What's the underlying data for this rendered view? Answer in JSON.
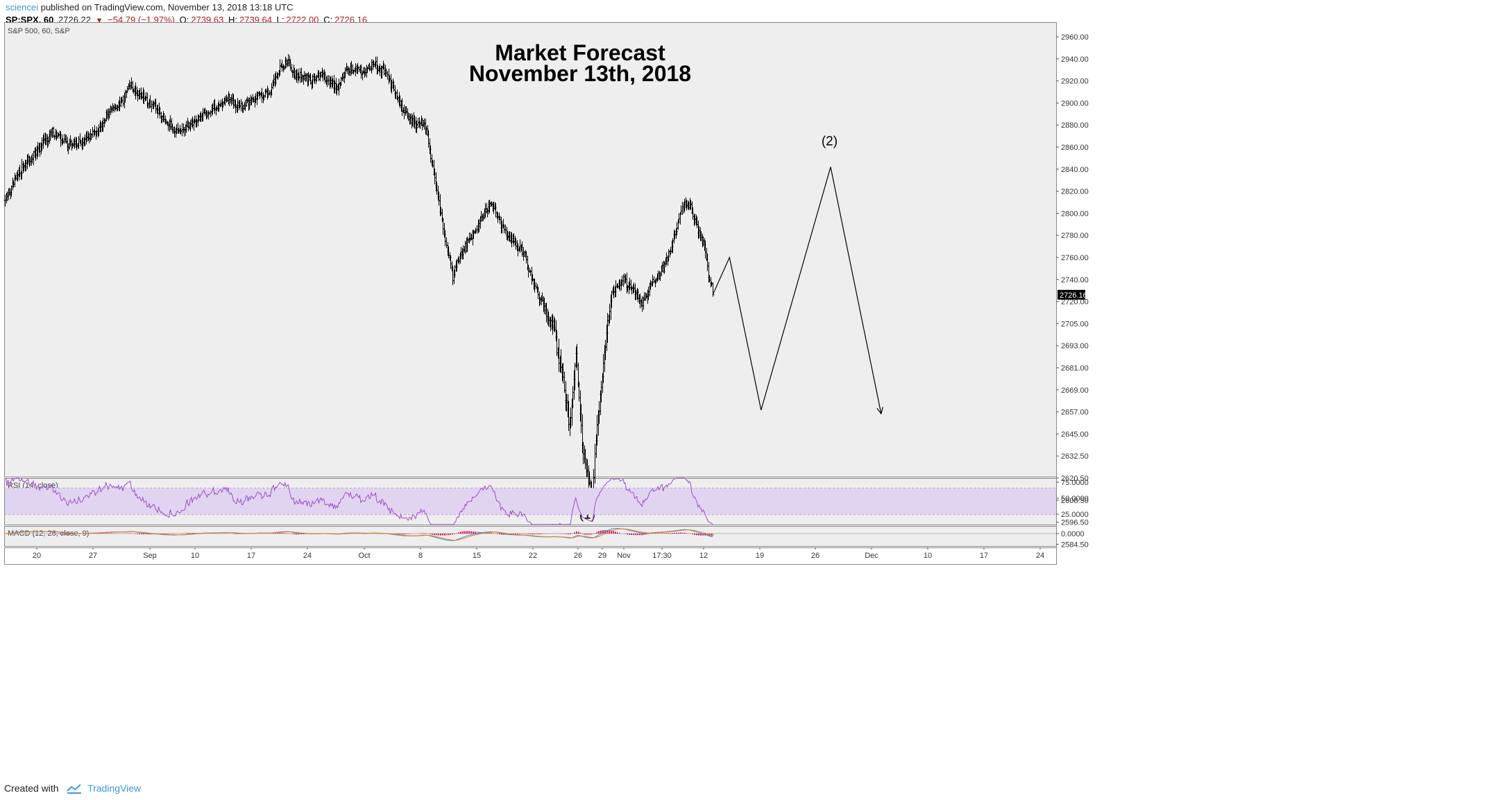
{
  "header": {
    "author": "sciencei",
    "publish_text": "published on TradingView.com, November 13, 2018 13:18 UTC",
    "symbol_line": "SP:SPX, 60",
    "last": "2726.22",
    "change_arrow": "▼",
    "change": "−54.79 (−1.97%)",
    "open_label": "O:",
    "open": "2739.63",
    "high_label": "H:",
    "high": "2739.64",
    "low_label": "L:",
    "low": "2722.00",
    "close_label": "C:",
    "close": "2726.16"
  },
  "footer": {
    "created_with": "Created with",
    "brand": "TradingView"
  },
  "colors": {
    "pane_bg": "#eeeeee",
    "border": "#888888",
    "bar": "#000000",
    "rsi_band": "#e1d4f0",
    "rsi_line": "#9c4fc7",
    "macd_line": "#2196f3",
    "signal_line": "#f57c00",
    "hist": "#d81b60",
    "tv_blue": "#3a98d9",
    "last_price_bg": "#000000"
  },
  "chart_data": [
    {
      "type": "ohlc",
      "pane_label": "S&P 500, 60, S&P",
      "title": "Market Forecast",
      "subtitle": "November 13th, 2018",
      "last_price_label": "2726.16",
      "x_axis_labels": [
        "20",
        "27",
        "Sep",
        "10",
        "17",
        "24",
        "Oct",
        "8",
        "15",
        "22",
        "26",
        "29",
        "Nov",
        "17:30",
        "12",
        "19",
        "26",
        "Dec",
        "10",
        "17",
        "24"
      ],
      "y_axis_labels": [
        "2960.00",
        "2940.00",
        "2920.00",
        "2900.00",
        "2880.00",
        "2860.00",
        "2840.00",
        "2820.00",
        "2800.00",
        "2780.00",
        "2760.00",
        "2740.00",
        "2720.00",
        "2705.00",
        "2693.00",
        "2681.00",
        "2669.00",
        "2657.00",
        "2645.00",
        "2632.50",
        "2620.50",
        "2608.50",
        "2596.50",
        "2584.50"
      ],
      "price_anchors": [
        [
          0,
          2812
        ],
        [
          6,
          2822
        ],
        [
          16,
          2842
        ],
        [
          30,
          2855
        ],
        [
          45,
          2874
        ],
        [
          60,
          2862
        ],
        [
          75,
          2865
        ],
        [
          86,
          2875
        ],
        [
          102,
          2896
        ],
        [
          110,
          2898
        ],
        [
          118,
          2916
        ],
        [
          128,
          2908
        ],
        [
          140,
          2898
        ],
        [
          155,
          2882
        ],
        [
          165,
          2872
        ],
        [
          175,
          2880
        ],
        [
          188,
          2889
        ],
        [
          200,
          2896
        ],
        [
          212,
          2904
        ],
        [
          225,
          2896
        ],
        [
          238,
          2906
        ],
        [
          252,
          2911
        ],
        [
          260,
          2930
        ],
        [
          268,
          2938
        ],
        [
          275,
          2926
        ],
        [
          290,
          2921
        ],
        [
          302,
          2925
        ],
        [
          315,
          2914
        ],
        [
          325,
          2931
        ],
        [
          340,
          2929
        ],
        [
          350,
          2936
        ],
        [
          360,
          2928
        ],
        [
          372,
          2906
        ],
        [
          380,
          2890
        ],
        [
          390,
          2880
        ],
        [
          398,
          2884
        ],
        [
          408,
          2832
        ],
        [
          415,
          2792
        ],
        [
          425,
          2742
        ],
        [
          432,
          2762
        ],
        [
          445,
          2782
        ],
        [
          455,
          2801
        ],
        [
          462,
          2811
        ],
        [
          470,
          2792
        ],
        [
          480,
          2777
        ],
        [
          492,
          2764
        ],
        [
          500,
          2742
        ],
        [
          510,
          2718
        ],
        [
          520,
          2705
        ],
        [
          528,
          2680
        ],
        [
          536,
          2650
        ],
        [
          542,
          2690
        ],
        [
          548,
          2640
        ],
        [
          554,
          2620
        ],
        [
          558,
          2612
        ],
        [
          562,
          2650
        ],
        [
          568,
          2680
        ],
        [
          576,
          2728
        ],
        [
          586,
          2740
        ],
        [
          596,
          2730
        ],
        [
          605,
          2720
        ],
        [
          615,
          2738
        ],
        [
          626,
          2752
        ],
        [
          636,
          2780
        ],
        [
          643,
          2807
        ],
        [
          650,
          2808
        ],
        [
          658,
          2785
        ],
        [
          664,
          2770
        ],
        [
          668,
          2742
        ],
        [
          672,
          2738
        ]
      ],
      "forecast_path": [
        [
          2726,
          0
        ],
        [
          2760,
          16
        ],
        [
          2658,
          46
        ],
        [
          2842,
          112
        ],
        [
          2656,
          160
        ]
      ],
      "annotations": [
        {
          "text": "(1)",
          "price": 2601,
          "bar": 553
        },
        {
          "text": "(2)",
          "price": 2866,
          "bar": 783
        }
      ]
    },
    {
      "type": "line",
      "pane_label": "RSI (14, close)",
      "y_axis_labels": [
        "75.0000",
        "50.0000",
        "25.0000"
      ],
      "band": [
        30,
        70
      ],
      "ylim": [
        15,
        85
      ]
    },
    {
      "type": "macd",
      "pane_label": "MACD (12, 26, close, 9)",
      "y_axis_labels": [
        "0.0000"
      ]
    }
  ]
}
